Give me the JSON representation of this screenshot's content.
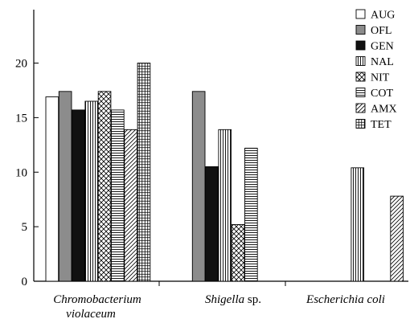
{
  "chart_data": {
    "type": "bar",
    "categories": [
      {
        "parts": [
          {
            "text": "Chromobacterium",
            "italic": true
          }
        ],
        "line2": "violaceum"
      },
      {
        "parts": [
          {
            "text": "Shigella",
            "italic": true
          },
          {
            "text": " sp.",
            "italic": false
          }
        ]
      },
      {
        "parts": [
          {
            "text": "Escherichia coli",
            "italic": true
          }
        ]
      }
    ],
    "series": [
      {
        "name": "AUG",
        "pattern": "white",
        "values": [
          16.9,
          null,
          null
        ]
      },
      {
        "name": "OFL",
        "pattern": "gray",
        "values": [
          17.4,
          17.4,
          null
        ]
      },
      {
        "name": "GEN",
        "pattern": "black",
        "values": [
          15.7,
          10.5,
          null
        ]
      },
      {
        "name": "NAL",
        "pattern": "vlines",
        "values": [
          16.5,
          13.9,
          10.4
        ]
      },
      {
        "name": "NIT",
        "pattern": "crosshatch",
        "values": [
          17.4,
          5.2,
          null
        ]
      },
      {
        "name": "COT",
        "pattern": "hlines",
        "values": [
          15.7,
          12.2,
          null
        ]
      },
      {
        "name": "AMX",
        "pattern": "diag",
        "values": [
          13.9,
          null,
          7.8
        ]
      },
      {
        "name": "TET",
        "pattern": "grid",
        "values": [
          20.0,
          null,
          null
        ]
      }
    ],
    "yticks": [
      0,
      5,
      10,
      15,
      20
    ],
    "ylim": [
      0,
      24.9
    ],
    "title": "",
    "xlabel": "",
    "ylabel": "",
    "legend_position": "top-right"
  }
}
